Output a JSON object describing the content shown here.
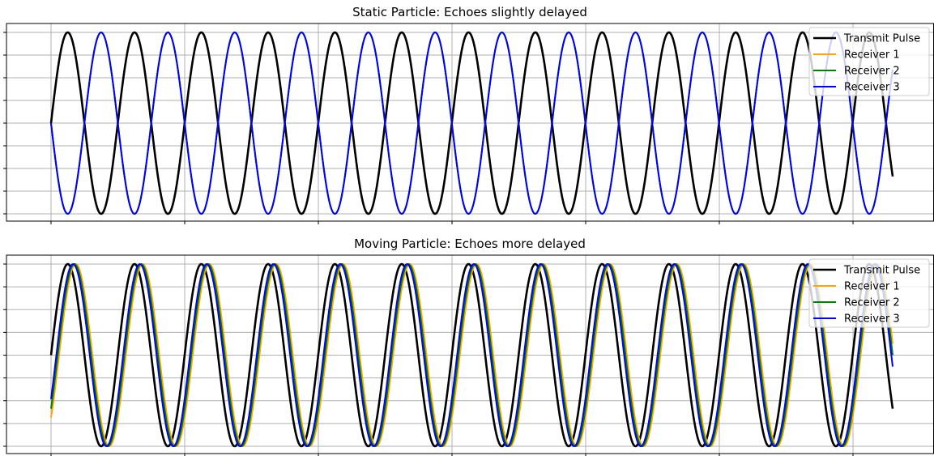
{
  "chart_data": [
    {
      "type": "line",
      "title": "Static Particle: Echoes slightly delayed",
      "xlabel": "",
      "ylabel": "",
      "x_range": [
        0,
        6.3
      ],
      "ylim": [
        -1,
        1
      ],
      "grid": true,
      "legend_position": "top-right",
      "tick_labels_shown": false,
      "frequency_cycles_per_unit": 2.0,
      "series": [
        {
          "name": "Transmit Pulse",
          "color": "#000000",
          "phase_delay": 0.0,
          "amplitude": 1.0
        },
        {
          "name": "Receiver 1",
          "color": "#ffa500",
          "phase_delay": 0.25,
          "amplitude": 1.0
        },
        {
          "name": "Receiver 2",
          "color": "#008000",
          "phase_delay": 0.25,
          "amplitude": 1.0
        },
        {
          "name": "Receiver 3",
          "color": "#0000ff",
          "phase_delay": 0.25,
          "amplitude": 1.0
        }
      ]
    },
    {
      "type": "line",
      "title": "Moving Particle: Echoes more delayed",
      "xlabel": "",
      "ylabel": "",
      "x_range": [
        0,
        6.3
      ],
      "ylim": [
        -1,
        1
      ],
      "grid": true,
      "legend_position": "top-right",
      "tick_labels_shown": false,
      "frequency_cycles_per_unit": 2.0,
      "series": [
        {
          "name": "Transmit Pulse",
          "color": "#000000",
          "phase_delay": 0.0,
          "amplitude": 1.0
        },
        {
          "name": "Receiver 1",
          "color": "#ffa500",
          "phase_delay": 0.56,
          "amplitude": 1.0
        },
        {
          "name": "Receiver 2",
          "color": "#008000",
          "phase_delay": 0.55,
          "amplitude": 1.0
        },
        {
          "name": "Receiver 3",
          "color": "#0000ff",
          "phase_delay": 0.54,
          "amplitude": 1.0
        }
      ]
    }
  ]
}
